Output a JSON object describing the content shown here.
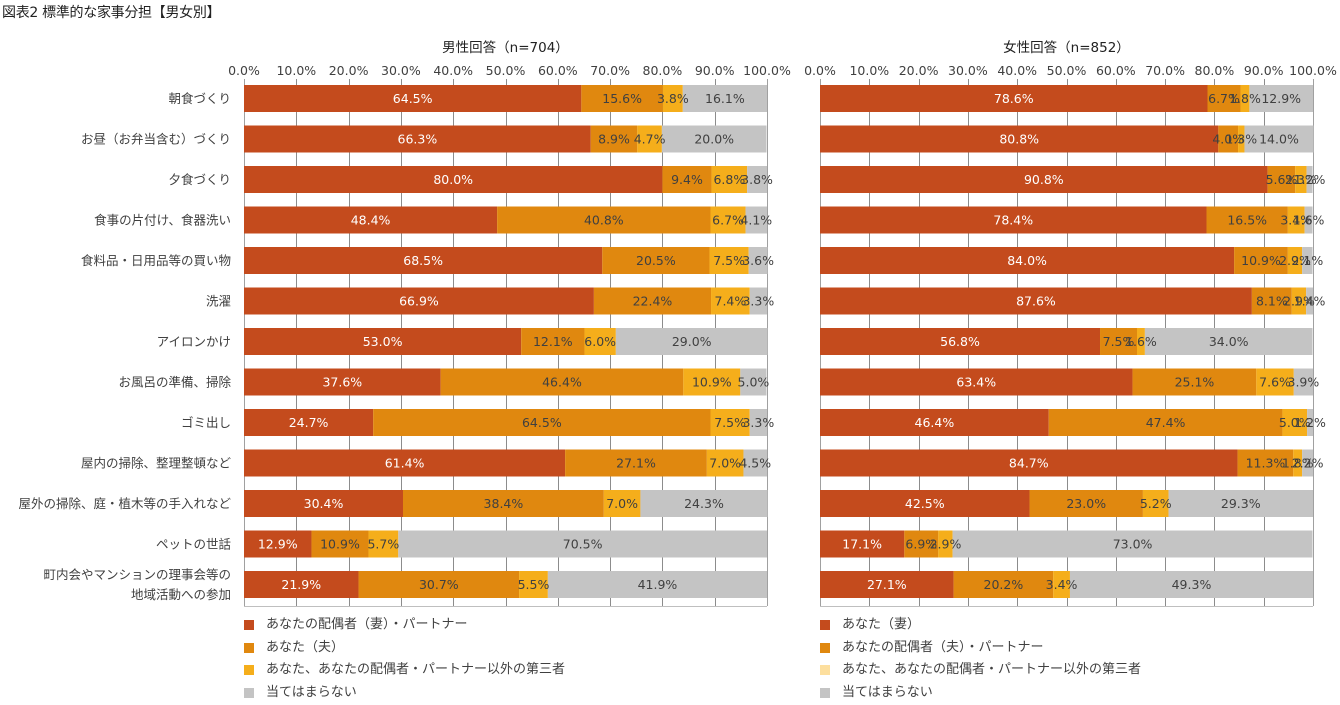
{
  "title": "図表2 標準的な家事分担【男女別】",
  "colors": {
    "seg1": "#C44B1D",
    "seg2": "#E0880F",
    "seg3": "#F5AE1B",
    "seg4": "#C4C4C4",
    "seg3_legend_female": "#FDDF9E",
    "grid": "#8C8C8C",
    "label_light": "#FFFFFF",
    "label_dark": "#404040"
  },
  "chart_data": [
    {
      "type": "bar",
      "orientation": "horizontal-stacked-100",
      "title": "男性回答（n=704）",
      "xlabel": "",
      "ylabel": "",
      "xlim": [
        0,
        100
      ],
      "x_ticks": [
        "0.0%",
        "10.0%",
        "20.0%",
        "30.0%",
        "40.0%",
        "50.0%",
        "60.0%",
        "70.0%",
        "80.0%",
        "90.0%",
        "100.0%"
      ],
      "grid": true,
      "legend_position": "bottom",
      "categories": [
        "朝食づくり",
        "お昼（お弁当含む）づくり",
        "夕食づくり",
        "食事の片付け、食器洗い",
        "食料品・日用品等の買い物",
        "洗濯",
        "アイロンかけ",
        "お風呂の準備、掃除",
        "ゴミ出し",
        "屋内の掃除、整理整頓など",
        "屋外の掃除、庭・植木等の手入れなど",
        "ペットの世話",
        "町内会やマンションの理事会等の|地域活動への参加"
      ],
      "series": [
        {
          "name": "あなたの配偶者（妻）・パートナー",
          "values": [
            64.5,
            66.3,
            80.0,
            48.4,
            68.5,
            66.9,
            53.0,
            37.6,
            24.7,
            61.4,
            30.4,
            12.9,
            21.9
          ]
        },
        {
          "name": "あなた（夫）",
          "values": [
            15.6,
            8.9,
            9.4,
            40.8,
            20.5,
            22.4,
            12.1,
            46.4,
            64.5,
            27.1,
            38.4,
            10.9,
            30.7
          ]
        },
        {
          "name": "あなた、あなたの配偶者・パートナー以外の第三者",
          "values": [
            3.8,
            4.7,
            6.8,
            6.7,
            7.5,
            7.4,
            6.0,
            10.9,
            7.5,
            7.0,
            7.0,
            5.7,
            5.5
          ]
        },
        {
          "name": "当てはまらない",
          "values": [
            16.1,
            20.0,
            3.8,
            4.1,
            3.6,
            3.3,
            29.0,
            5.0,
            3.3,
            4.5,
            24.3,
            70.5,
            41.9
          ]
        }
      ]
    },
    {
      "type": "bar",
      "orientation": "horizontal-stacked-100",
      "title": "女性回答（n=852）",
      "xlabel": "",
      "ylabel": "",
      "xlim": [
        0,
        100
      ],
      "x_ticks": [
        "0.0%",
        "10.0%",
        "20.0%",
        "30.0%",
        "40.0%",
        "50.0%",
        "60.0%",
        "70.0%",
        "80.0%",
        "90.0%",
        "100.0%"
      ],
      "grid": true,
      "legend_position": "bottom",
      "categories": [
        "朝食づくり",
        "お昼（お弁当含む）づくり",
        "夕食づくり",
        "食事の片付け、食器洗い",
        "食料品・日用品等の買い物",
        "洗濯",
        "アイロンかけ",
        "お風呂の準備、掃除",
        "ゴミ出し",
        "屋内の掃除、整理整頓など",
        "屋外の掃除、庭・植木等の手入れなど",
        "ペットの世話",
        "町内会やマンションの理事会等の|地域活動への参加"
      ],
      "series": [
        {
          "name": "あなた（妻）",
          "values": [
            78.6,
            80.8,
            90.8,
            78.4,
            84.0,
            87.6,
            56.8,
            63.4,
            46.4,
            84.7,
            42.5,
            17.1,
            27.1
          ]
        },
        {
          "name": "あなたの配偶者（夫）・パートナー",
          "values": [
            6.7,
            4.0,
            5.6,
            16.5,
            10.9,
            8.1,
            7.5,
            25.1,
            47.4,
            11.3,
            23.0,
            6.9,
            20.2
          ]
        },
        {
          "name": "あなた、あなたの配偶者・パートナー以外の第三者",
          "values": [
            1.8,
            1.3,
            2.3,
            3.4,
            2.9,
            2.9,
            1.6,
            7.6,
            5.0,
            1.8,
            5.2,
            2.9,
            3.4
          ]
        },
        {
          "name": "当てはまらない",
          "values": [
            12.9,
            14.0,
            1.2,
            1.6,
            2.1,
            1.4,
            34.0,
            3.9,
            1.2,
            2.2,
            29.3,
            73.0,
            49.3
          ]
        }
      ]
    }
  ],
  "legends": [
    {
      "items": [
        {
          "label": "あなたの配偶者（妻）・パートナー",
          "color": "#C44B1D"
        },
        {
          "label": "あなた（夫）",
          "color": "#E0880F"
        },
        {
          "label": "あなた、あなたの配偶者・パートナー以外の第三者",
          "color": "#F5AE1B"
        },
        {
          "label": "当てはまらない",
          "color": "#C4C4C4"
        }
      ]
    },
    {
      "items": [
        {
          "label": "あなた（妻）",
          "color": "#C44B1D"
        },
        {
          "label": "あなたの配偶者（夫）・パートナー",
          "color": "#E0880F"
        },
        {
          "label": "あなた、あなたの配偶者・パートナー以外の第三者",
          "color": "#FDDF9E"
        },
        {
          "label": "当てはまらない",
          "color": "#C4C4C4"
        }
      ]
    }
  ]
}
